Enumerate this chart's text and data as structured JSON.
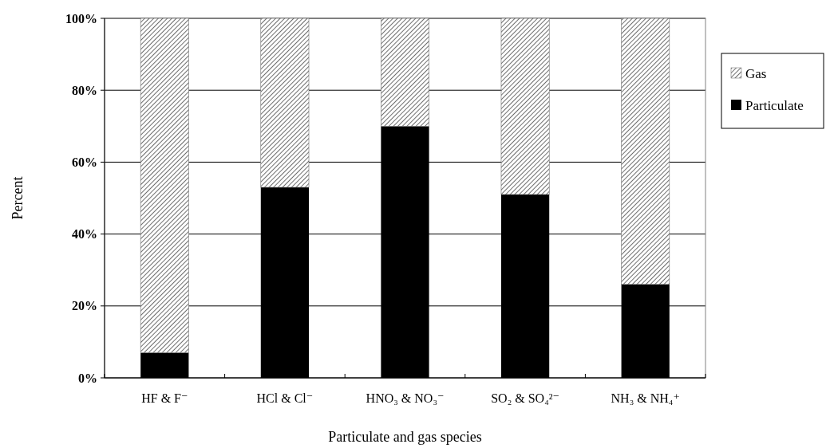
{
  "chart_data": {
    "type": "bar",
    "stacked": true,
    "xlabel": "Particulate and gas species",
    "ylabel": "Percent",
    "categories": [
      "HF & F⁻",
      "HCl & Cl⁻",
      "HNO₃ & NO₃⁻",
      "SO₂ & SO₄²⁻",
      "NH₃ & NH₄⁺"
    ],
    "series": [
      {
        "name": "Particulate",
        "color": "#000000",
        "values": [
          7,
          53,
          70,
          51,
          26
        ]
      },
      {
        "name": "Gas",
        "color": "#6e6e6e",
        "values": [
          93,
          47,
          30,
          49,
          74
        ]
      }
    ],
    "ylim": [
      0,
      100
    ],
    "yticks": [
      {
        "value": 0,
        "label": "0%"
      },
      {
        "value": 20,
        "label": "20%"
      },
      {
        "value": 40,
        "label": "40%"
      },
      {
        "value": 60,
        "label": "60%"
      },
      {
        "value": 80,
        "label": "80%"
      },
      {
        "value": 100,
        "label": "100%"
      }
    ],
    "grid": "y",
    "legend": "right"
  }
}
